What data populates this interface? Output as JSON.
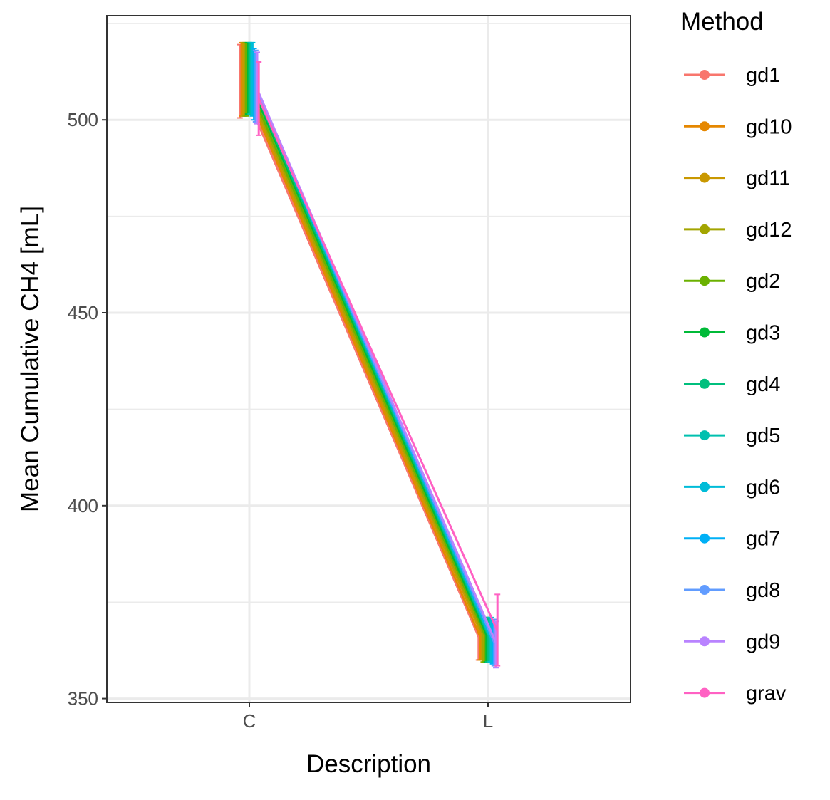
{
  "chart_data": {
    "type": "line",
    "xlabel": "Description",
    "ylabel": "Mean Cumulative CH4 [mL]",
    "categories": [
      "C",
      "L"
    ],
    "ylim": [
      349,
      527
    ],
    "yticks": [
      350,
      400,
      450,
      500
    ],
    "grid": true,
    "legend": {
      "title": "Method",
      "position": "right"
    },
    "series": [
      {
        "name": "gd1",
        "color": "#F8766D",
        "values": [
          510.0,
          366.0
        ],
        "err_low": [
          500.5,
          360.0
        ],
        "err_high": [
          519.5,
          371.0
        ]
      },
      {
        "name": "gd10",
        "color": "#E58700",
        "values": [
          510.5,
          366.0
        ],
        "err_low": [
          501.0,
          360.0
        ],
        "err_high": [
          520.0,
          371.0
        ]
      },
      {
        "name": "gd11",
        "color": "#C99800",
        "values": [
          510.5,
          366.5
        ],
        "err_low": [
          501.0,
          360.0
        ],
        "err_high": [
          520.0,
          371.0
        ]
      },
      {
        "name": "gd12",
        "color": "#A3A500",
        "values": [
          510.5,
          366.5
        ],
        "err_low": [
          501.0,
          359.5
        ],
        "err_high": [
          520.0,
          371.0
        ]
      },
      {
        "name": "gd2",
        "color": "#6BB100",
        "values": [
          510.5,
          366.5
        ],
        "err_low": [
          501.0,
          359.5
        ],
        "err_high": [
          520.0,
          371.0
        ]
      },
      {
        "name": "gd3",
        "color": "#00BA38",
        "values": [
          511.0,
          366.5
        ],
        "err_low": [
          501.5,
          359.5
        ],
        "err_high": [
          520.0,
          371.0
        ]
      },
      {
        "name": "gd4",
        "color": "#00BF7D",
        "values": [
          511.0,
          366.5
        ],
        "err_low": [
          501.5,
          359.5
        ],
        "err_high": [
          520.0,
          371.0
        ]
      },
      {
        "name": "gd5",
        "color": "#00C0AF",
        "values": [
          511.0,
          366.0
        ],
        "err_low": [
          501.5,
          359.5
        ],
        "err_high": [
          520.0,
          371.0
        ]
      },
      {
        "name": "gd6",
        "color": "#00BCD8",
        "values": [
          510.5,
          365.5
        ],
        "err_low": [
          501.0,
          359.5
        ],
        "err_high": [
          520.0,
          371.0
        ]
      },
      {
        "name": "gd7",
        "color": "#00B0F6",
        "values": [
          509.0,
          365.0
        ],
        "err_low": [
          500.0,
          359.0
        ],
        "err_high": [
          518.5,
          370.5
        ]
      },
      {
        "name": "gd8",
        "color": "#619CFF",
        "values": [
          508.5,
          364.5
        ],
        "err_low": [
          499.5,
          358.5
        ],
        "err_high": [
          518.0,
          370.5
        ]
      },
      {
        "name": "gd9",
        "color": "#B983FF",
        "values": [
          508.0,
          364.5
        ],
        "err_low": [
          499.0,
          358.0
        ],
        "err_high": [
          517.5,
          370.0
        ]
      },
      {
        "name": "grav",
        "color": "#FF61C3",
        "values": [
          505.5,
          367.5
        ],
        "err_low": [
          496.0,
          358.5
        ],
        "err_high": [
          515.0,
          377.0
        ]
      }
    ]
  }
}
